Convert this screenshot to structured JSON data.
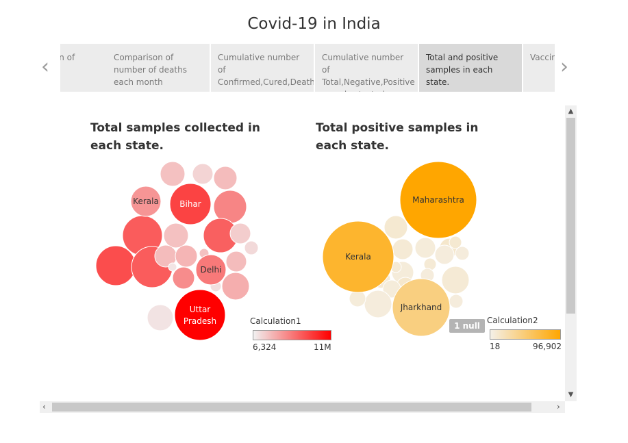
{
  "page": {
    "title": "Covid-19 in India"
  },
  "tabs": [
    {
      "label": "Comparison of number"
    },
    {
      "label": "Comparison of number of deaths each month"
    },
    {
      "label": "Cumulative number of Confirmed,Cured,Death cases."
    },
    {
      "label": "Cumulative number of Total,Negative,Positive samples tested ."
    },
    {
      "label": "Total and positive samples in each state.",
      "selected": true
    },
    {
      "label": "Vaccination"
    }
  ],
  "icons": {
    "prev": "chevron-left-icon",
    "next": "chevron-right-icon",
    "scroll_up": "triangle-up-icon",
    "scroll_down": "triangle-down-icon",
    "scroll_left": "triangle-left-icon",
    "scroll_right": "triangle-right-icon"
  },
  "chart_data": [
    {
      "type": "bubble",
      "title": "Total samples collected in each state.",
      "color_field": "Calculation1",
      "color_range": [
        "#f1f1f1",
        "#ff0000"
      ],
      "color_min_label": "6,324",
      "color_max_label": "11M",
      "labeled_bubbles": [
        {
          "label": "Kerala",
          "color_value": 0.38
        },
        {
          "label": "Bihar",
          "color_value": 0.72
        },
        {
          "label": "Delhi",
          "color_value": 0.5
        },
        {
          "label": "Uttar Pradesh",
          "color_value": 1.0
        }
      ],
      "unlabeled_bubble_color_values": [
        0.2,
        0.12,
        0.22,
        0.45,
        0.62,
        0.2,
        0.6,
        0.15,
        0.68,
        0.62,
        0.22,
        0.25,
        0.2,
        0.1,
        0.22,
        0.42,
        0.28,
        0.06,
        0.08,
        0.05
      ]
    },
    {
      "type": "bubble",
      "title": "Total positive samples in each state.",
      "color_field": "Calculation2",
      "color_range": [
        "#f4f0e8",
        "#ffa600"
      ],
      "color_min_label": "18",
      "color_max_label": "96,902",
      "null_label": "1 null",
      "labeled_bubbles": [
        {
          "label": "Maharashtra",
          "color_value": 1.0
        },
        {
          "label": "Kerala",
          "color_value": 0.8
        },
        {
          "label": "Jharkhand",
          "color_value": 0.45
        }
      ],
      "unlabeled_bubble_color_values": [
        0.1,
        0.08,
        0.06,
        0.12,
        0.05,
        0.08,
        0.1,
        0.05,
        0.08,
        0.06,
        0.05,
        0.12,
        0.08,
        0.06,
        0.05,
        0.05,
        0.06,
        0.05,
        0.08,
        0.05
      ]
    }
  ]
}
